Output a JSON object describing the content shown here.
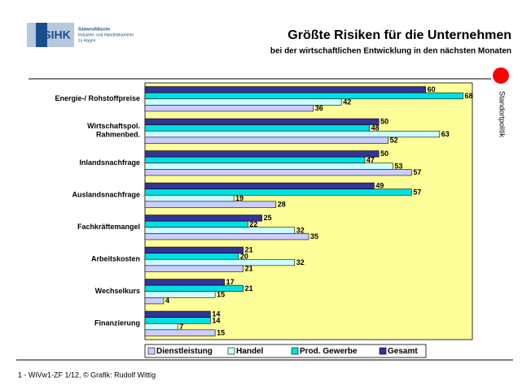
{
  "logo": {
    "mark": "SIHK",
    "lines": [
      "Südwestfälische",
      "Industrie- und Handelskammer",
      "zu Hagen"
    ]
  },
  "side_label": "Standortpolitik",
  "footer": "1 - WiVw1-ZF 1/12, © Grafik: Rudolf Wittig",
  "chart_data": {
    "type": "hbar",
    "title": "Größte Risiken für die Unternehmen",
    "subtitle": "bei der wirtschaftlichen Entwicklung in den nächsten Monaten",
    "categories": [
      "Energie-/ Rohstoffpreise",
      "Wirtschaftspol.\nRahmenbed.",
      "Inlandsnachfrage",
      "Auslandsnachfrage",
      "Fachkräftemangel",
      "Arbeitskosten",
      "Wechselkurs",
      "Finanzierung"
    ],
    "series": [
      {
        "name": "Gesamt",
        "color": "#333399",
        "values": [
          60,
          50,
          50,
          49,
          25,
          21,
          17,
          14
        ]
      },
      {
        "name": "Prod. Gewerbe",
        "color": "#00e0e0",
        "values": [
          68,
          48,
          47,
          57,
          22,
          20,
          21,
          14
        ]
      },
      {
        "name": "Handel",
        "color": "#ccffff",
        "values": [
          42,
          63,
          53,
          19,
          32,
          32,
          15,
          7
        ]
      },
      {
        "name": "Dienstleistung",
        "color": "#ccccff",
        "values": [
          36,
          52,
          57,
          28,
          35,
          21,
          4,
          15
        ]
      }
    ],
    "xlim": [
      0,
      70
    ],
    "legend": "bottom",
    "plot_background": "#ffff99"
  }
}
